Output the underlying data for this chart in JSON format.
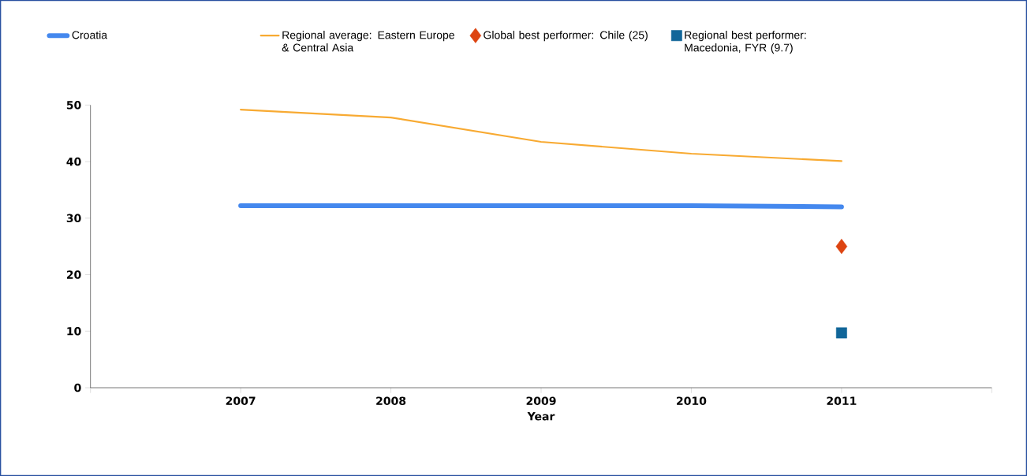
{
  "chart_data": {
    "type": "line",
    "xlabel": "Year",
    "x": [
      2007,
      2008,
      2009,
      2010,
      2011
    ],
    "series": [
      {
        "name": "Croatia",
        "color": "#4488ee",
        "values": [
          32.2,
          32.2,
          32.2,
          32.2,
          32.0
        ]
      },
      {
        "name": "Regional average: Eastern Europe & Central Asia",
        "color": "#f8aa32",
        "values": [
          49.2,
          47.8,
          43.5,
          41.4,
          40.1
        ]
      },
      {
        "name": "Global best performer: Chile (25)",
        "type": "scatter",
        "marker": "diamond",
        "color": "#dd4411",
        "values": [
          null,
          null,
          null,
          null,
          25
        ]
      },
      {
        "name": "Regional best performer: Macedonia, FYR (9.7)",
        "type": "scatter",
        "marker": "square",
        "color": "#116699",
        "values": [
          null,
          null,
          null,
          null,
          9.7
        ]
      }
    ],
    "xlim": [
      2006,
      2012
    ],
    "xticks": [
      {
        "value": 2006,
        "label": null
      },
      2007,
      2008,
      2009,
      2010,
      2011,
      {
        "value": 2012,
        "label": null
      }
    ],
    "ylim": [
      0,
      50
    ],
    "yticks": [
      0,
      10,
      20,
      30,
      40,
      50
    ],
    "grid": false,
    "legend": "top",
    "marker": "none"
  }
}
